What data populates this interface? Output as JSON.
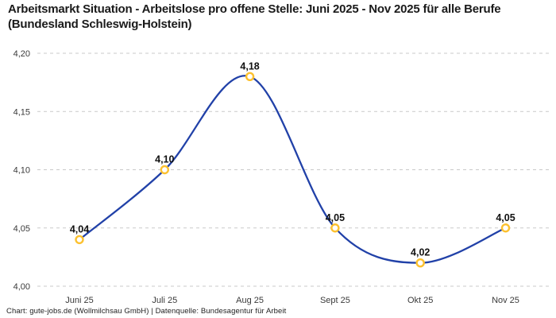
{
  "header": {
    "title": "Arbeitsmarkt Situation - Arbeitslose pro offene Stelle: Juni 2025 - Nov 2025 für alle Berufe (Bundesland Schleswig-Holstein)"
  },
  "footer": {
    "credit": "Chart: gute-jobs.de (Wollmilchsau GmbH) | Datenquelle: Bundesagentur für Arbeit"
  },
  "chart_data": {
    "type": "line",
    "title": "Arbeitsmarkt Situation - Arbeitslose pro offene Stelle: Juni 2025 - Nov 2025 für alle Berufe (Bundesland Schleswig-Holstein)",
    "categories": [
      "Juni 25",
      "Juli 25",
      "Aug 25",
      "Sept 25",
      "Okt 25",
      "Nov 25"
    ],
    "values": [
      4.04,
      4.1,
      4.18,
      4.05,
      4.02,
      4.05
    ],
    "value_labels": [
      "4,04",
      "4,10",
      "4,18",
      "4,05",
      "4,02",
      "4,05"
    ],
    "xlabel": "",
    "ylabel": "",
    "ylim": [
      4.0,
      4.2
    ],
    "yticks": [
      4.0,
      4.05,
      4.1,
      4.15,
      4.2
    ],
    "ytick_labels": [
      "4,00",
      "4,05",
      "4,10",
      "4,15",
      "4,20"
    ],
    "grid": "horizontal-dashed",
    "legend": "none",
    "smooth": true,
    "colors": {
      "line": "#2141a8",
      "marker_stroke": "#fcc12f",
      "marker_fill": "#ffffff",
      "gridline": "#c9c9c9",
      "tick_text": "#3a3a3a",
      "data_label": "#111111"
    }
  }
}
